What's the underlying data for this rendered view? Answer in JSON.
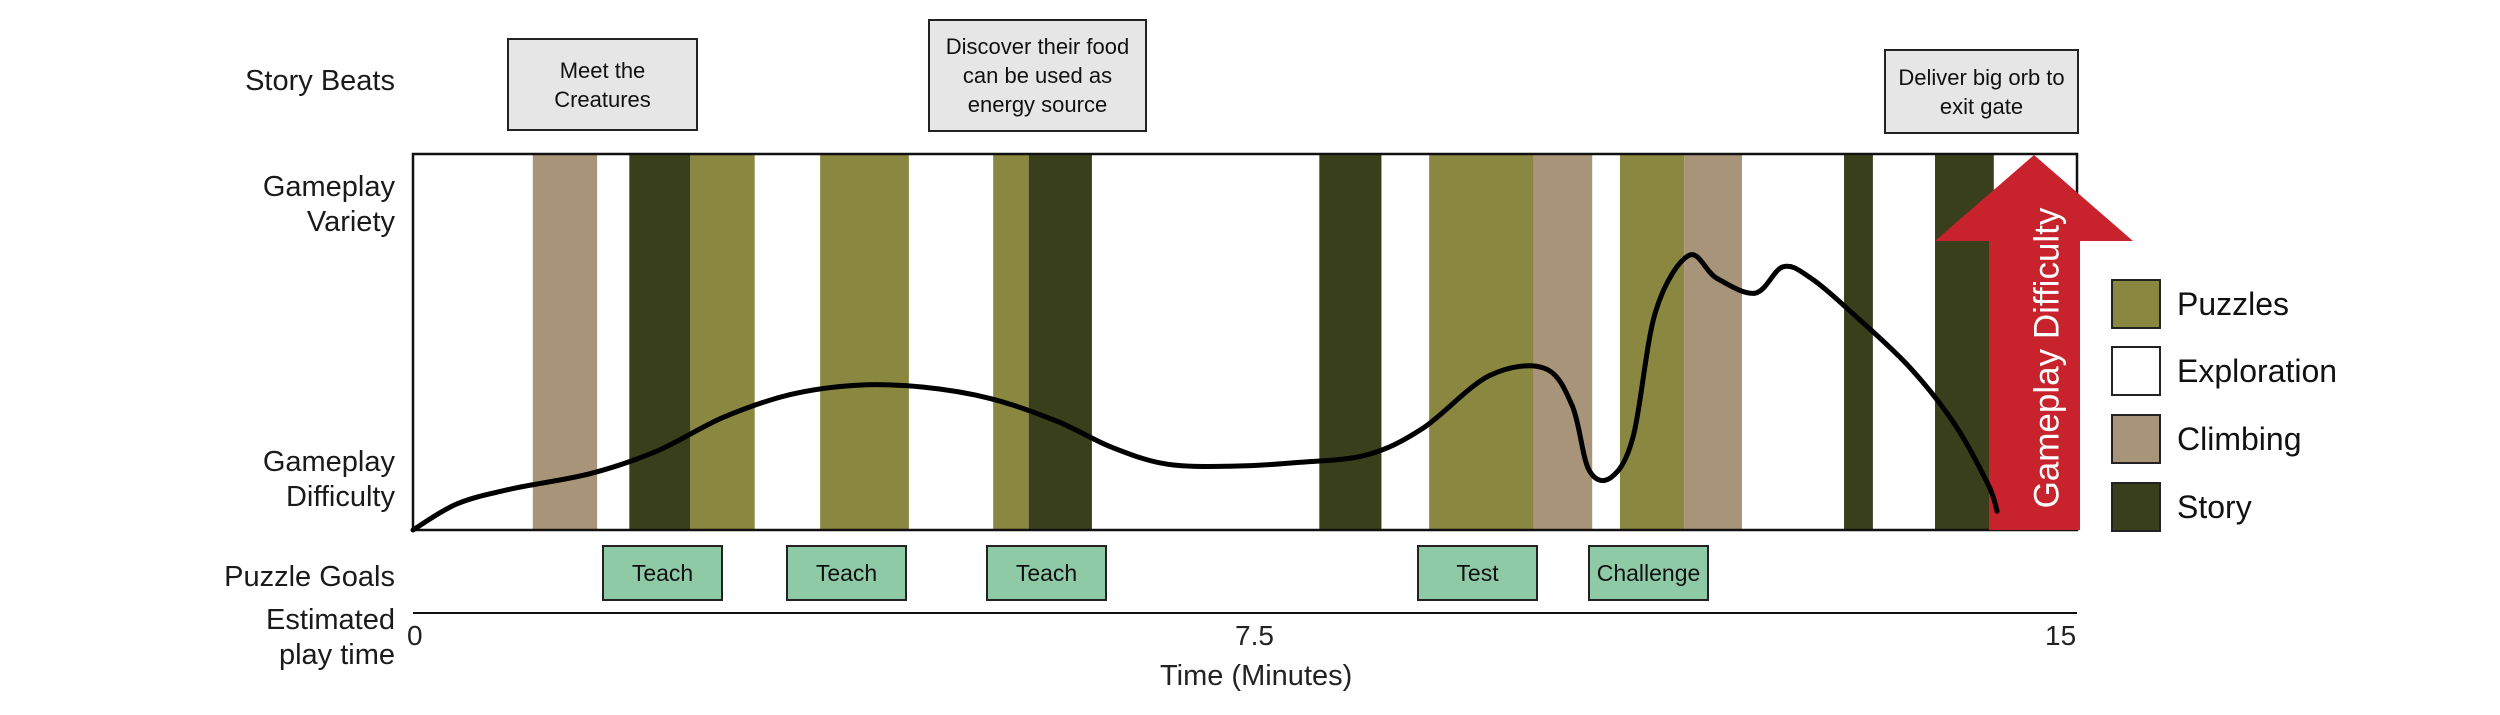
{
  "colors": {
    "puzzles": "#8a8740",
    "exploration": "#ffffff",
    "climbing": "#a89479",
    "story": "#3a3f1b",
    "difficulty_arrow": "#c8232c",
    "goal_box": "#8fcaa6",
    "beat_box": "#e6e6e6"
  },
  "row_labels": {
    "story_beats": "Story Beats",
    "gameplay_variety_1": "Gameplay",
    "gameplay_variety_2": "Variety",
    "gameplay_difficulty_1": "Gameplay",
    "gameplay_difficulty_2": "Difficulty",
    "puzzle_goals": "Puzzle Goals",
    "play_time_1": "Estimated",
    "play_time_2": "play time"
  },
  "story_beats": [
    {
      "text": "Meet the Creatures"
    },
    {
      "text": "Discover their food can be used as energy source"
    },
    {
      "text": "Deliver big orb to exit gate"
    }
  ],
  "puzzle_goals": [
    "Teach",
    "Teach",
    "Teach",
    "Test",
    "Challenge"
  ],
  "legend": [
    {
      "label": "Puzzles",
      "type": "puzzles"
    },
    {
      "label": "Exploration",
      "type": "exploration"
    },
    {
      "label": "Climbing",
      "type": "climbing"
    },
    {
      "label": "Story",
      "type": "story"
    }
  ],
  "arrow_label": "Gameplay Difficulty",
  "x_axis": {
    "title": "Time (Minutes)",
    "min": 0,
    "max": 15,
    "ticks": [
      "0",
      "7.5",
      "15"
    ]
  },
  "segments": [
    {
      "type": "climbing",
      "start": 1.08,
      "end": 1.66
    },
    {
      "type": "story",
      "start": 1.95,
      "end": 2.5
    },
    {
      "type": "puzzles",
      "start": 2.5,
      "end": 3.08
    },
    {
      "type": "puzzles",
      "start": 3.67,
      "end": 4.47
    },
    {
      "type": "puzzles",
      "start": 5.23,
      "end": 5.55
    },
    {
      "type": "story",
      "start": 5.55,
      "end": 6.12
    },
    {
      "type": "story",
      "start": 8.17,
      "end": 8.73
    },
    {
      "type": "puzzles",
      "start": 9.16,
      "end": 10.1
    },
    {
      "type": "climbing",
      "start": 10.1,
      "end": 10.63
    },
    {
      "type": "puzzles",
      "start": 10.88,
      "end": 11.46
    },
    {
      "type": "climbing",
      "start": 11.46,
      "end": 11.98
    },
    {
      "type": "story",
      "start": 12.9,
      "end": 13.16
    },
    {
      "type": "story",
      "start": 13.72,
      "end": 14.25
    }
  ],
  "difficulty_curve": [
    [
      0.0,
      0.0
    ],
    [
      0.4,
      0.07
    ],
    [
      0.9,
      0.11
    ],
    [
      1.6,
      0.15
    ],
    [
      2.2,
      0.21
    ],
    [
      2.8,
      0.3
    ],
    [
      3.4,
      0.36
    ],
    [
      4.0,
      0.385
    ],
    [
      4.6,
      0.38
    ],
    [
      5.2,
      0.35
    ],
    [
      5.8,
      0.29
    ],
    [
      6.3,
      0.22
    ],
    [
      6.8,
      0.175
    ],
    [
      7.4,
      0.17
    ],
    [
      8.0,
      0.18
    ],
    [
      8.6,
      0.2
    ],
    [
      9.1,
      0.27
    ],
    [
      9.7,
      0.41
    ],
    [
      10.2,
      0.43
    ],
    [
      10.45,
      0.33
    ],
    [
      10.6,
      0.16
    ],
    [
      10.8,
      0.14
    ],
    [
      11.0,
      0.25
    ],
    [
      11.2,
      0.58
    ],
    [
      11.5,
      0.73
    ],
    [
      11.75,
      0.67
    ],
    [
      12.1,
      0.63
    ],
    [
      12.35,
      0.7
    ],
    [
      12.6,
      0.67
    ],
    [
      13.0,
      0.57
    ],
    [
      13.5,
      0.43
    ],
    [
      13.9,
      0.28
    ],
    [
      14.2,
      0.12
    ],
    [
      14.28,
      0.05
    ]
  ]
}
